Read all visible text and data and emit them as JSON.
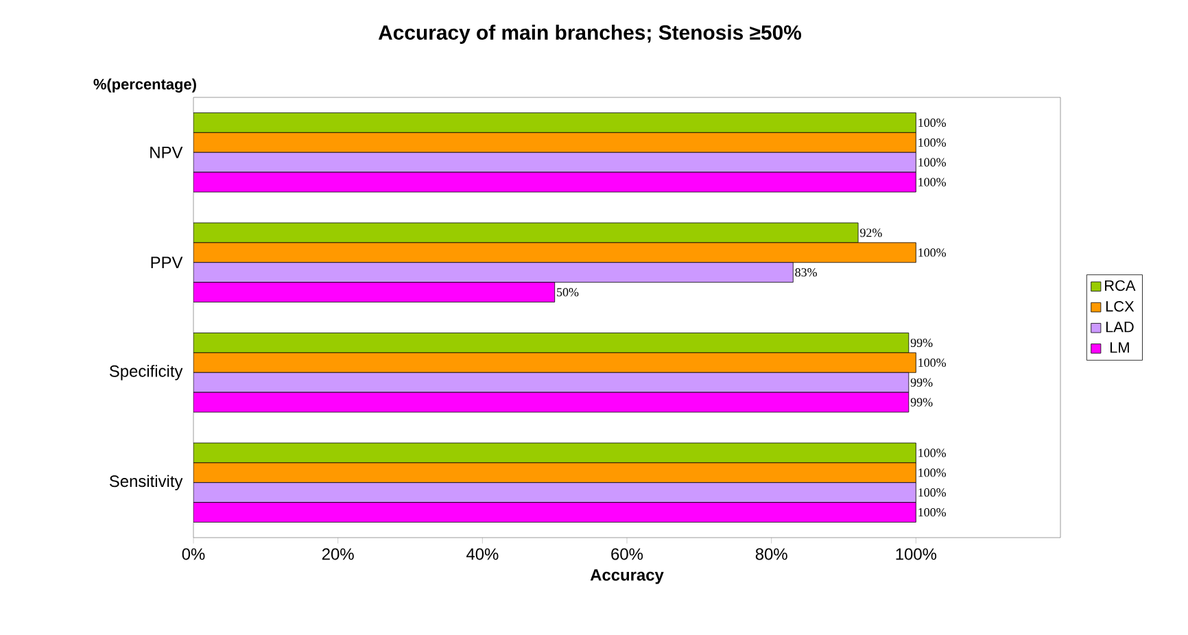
{
  "chart_data": {
    "type": "bar",
    "orientation": "horizontal",
    "title": "Accuracy of main branches; Stenosis ≥50%",
    "xlabel": "Accuracy",
    "ylabel": "%(percentage)",
    "categories": [
      "NPV",
      "PPV",
      "Specificity",
      "Sensitivity"
    ],
    "series": [
      {
        "name": "RCA",
        "color": "#99cc00",
        "values": [
          100,
          92,
          99,
          100
        ],
        "value_labels": [
          "100%",
          "92%",
          "99%",
          "100%"
        ]
      },
      {
        "name": "LCX",
        "color": "#ff9900",
        "values": [
          100,
          100,
          100,
          100
        ],
        "value_labels": [
          "100%",
          "100%",
          "100%",
          "100%"
        ]
      },
      {
        "name": "LAD",
        "color": "#cc99ff",
        "values": [
          100,
          83,
          99,
          100
        ],
        "value_labels": [
          "100%",
          "83%",
          "99%",
          "100%"
        ]
      },
      {
        "name": "LM",
        "color": "#ff00ff",
        "values": [
          100,
          50,
          99,
          100
        ],
        "value_labels": [
          "100%",
          "50%",
          "99%",
          "100%"
        ]
      }
    ],
    "xlim": [
      0,
      120
    ],
    "xticks": [
      {
        "value": 0,
        "label": "0%"
      },
      {
        "value": 20,
        "label": "20%"
      },
      {
        "value": 40,
        "label": "40%"
      },
      {
        "value": 60,
        "label": "60%"
      },
      {
        "value": 80,
        "label": "80%"
      },
      {
        "value": 100,
        "label": "100%"
      }
    ],
    "legend": "right"
  }
}
